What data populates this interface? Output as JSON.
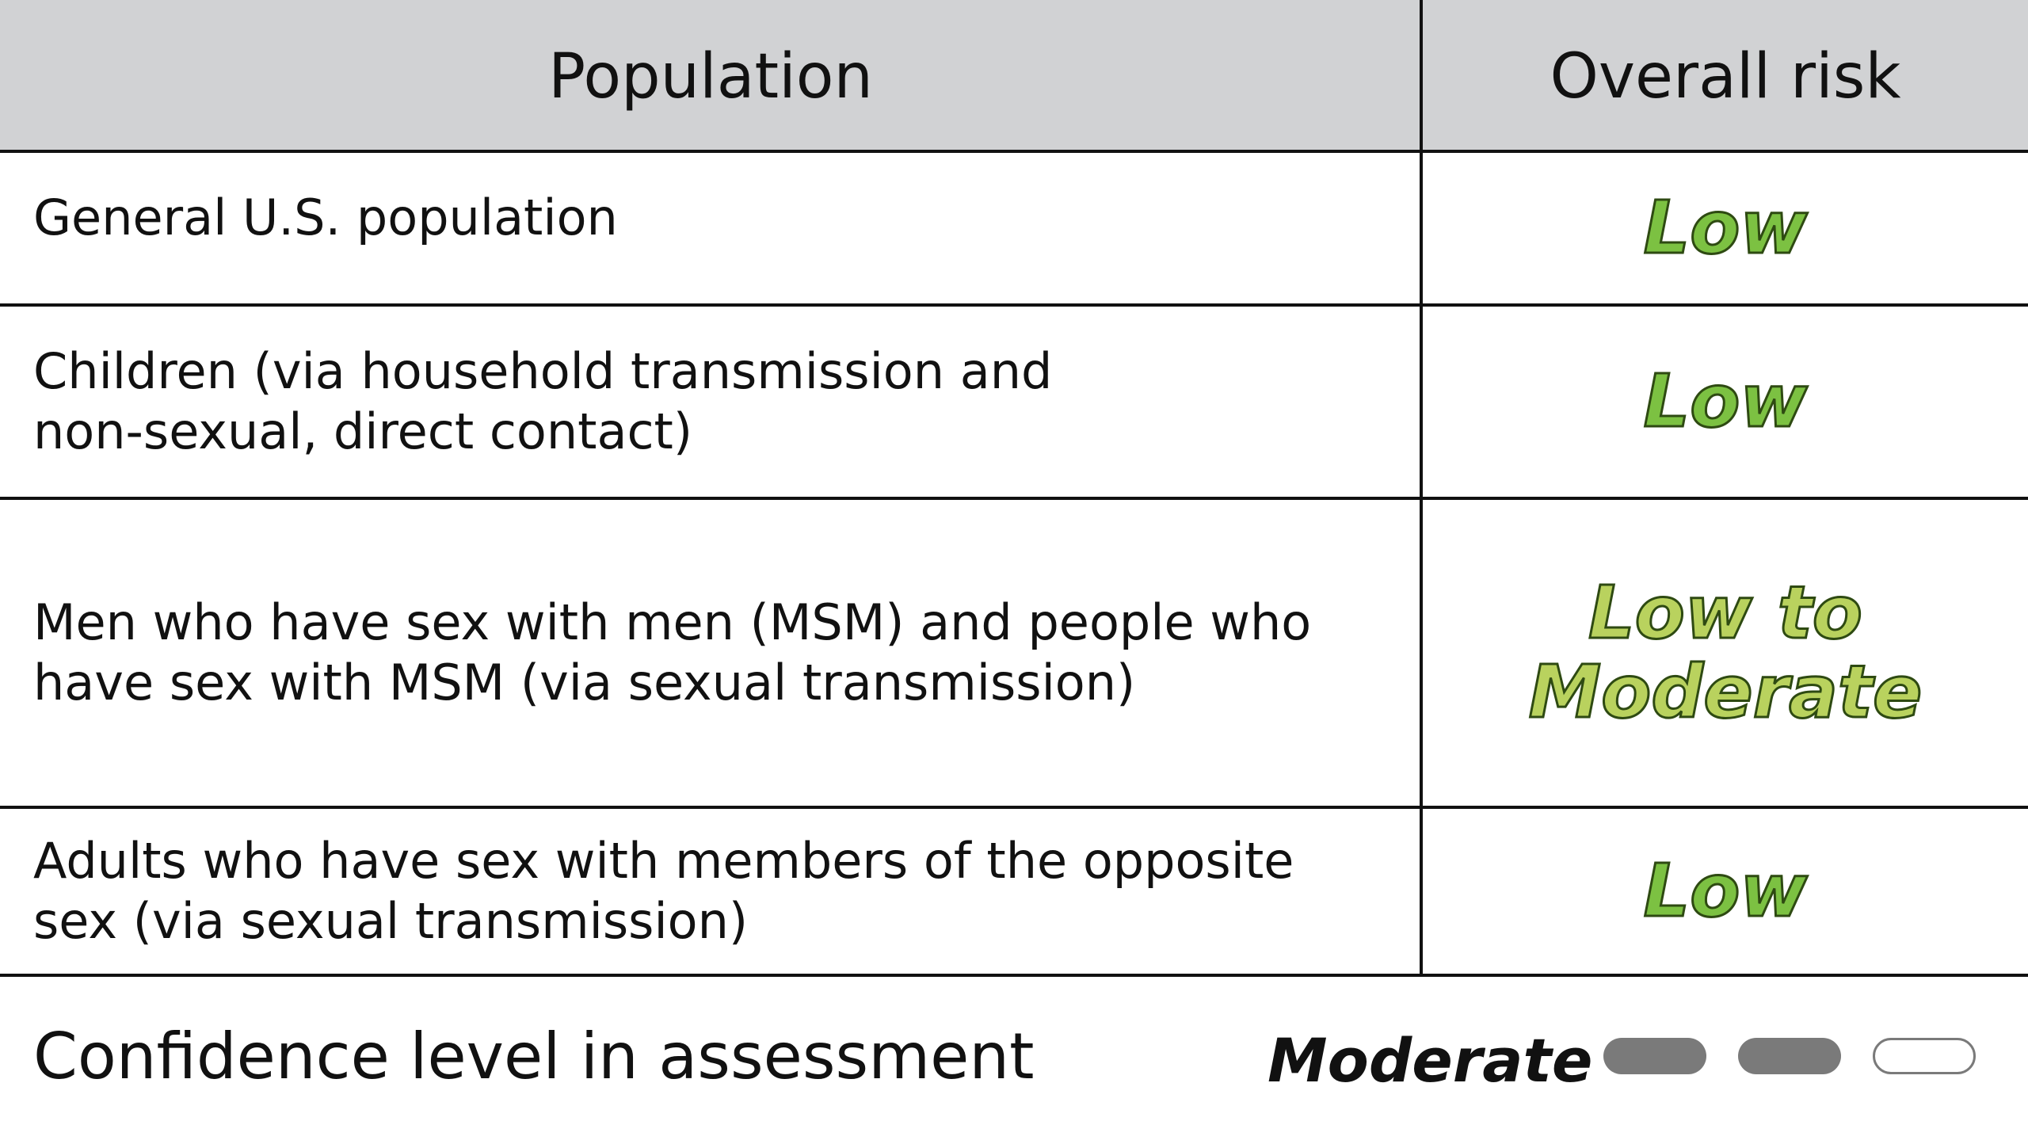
{
  "header": {
    "population": "Population",
    "overall_risk": "Overall risk"
  },
  "rows": [
    {
      "population": "General U.S. population",
      "risk": "Low"
    },
    {
      "population": "Children (via household transmission and\nnon-sexual, direct contact)",
      "risk": "Low"
    },
    {
      "population": "Men who have sex with men (MSM) and people who\nhave sex with MSM (via sexual transmission)",
      "risk": "Low to\nModerate"
    },
    {
      "population": "Adults who have sex with members of the opposite\nsex (via sexual transmission)",
      "risk": "Low"
    }
  ],
  "confidence": {
    "label": "Confidence level in assessment",
    "value": "Moderate",
    "level": 2,
    "max_level": 3
  },
  "colors": {
    "low": "#7cc142",
    "low_to_moderate": "#b9d25e",
    "header_bg": "#d1d2d4",
    "pill_filled": "#7a7a7a"
  }
}
